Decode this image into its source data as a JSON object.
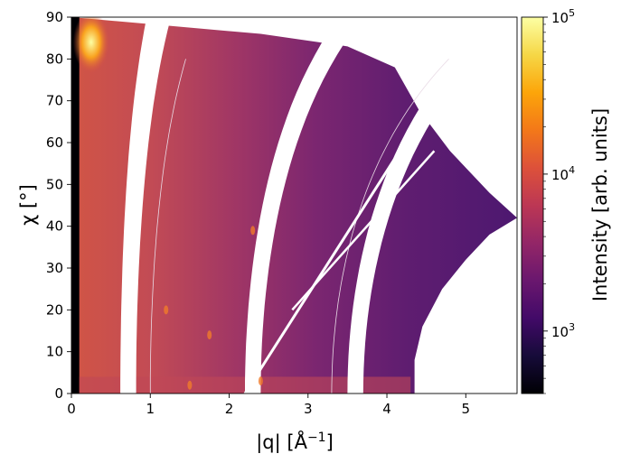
{
  "chart_data": {
    "type": "heatmap",
    "title": "",
    "x_axis": {
      "label_main": "|q| [Å",
      "label_sup": "−1",
      "label_end": "]",
      "range": [
        0,
        5.65
      ],
      "ticks": [
        0,
        1,
        2,
        3,
        4,
        5
      ],
      "tick_labels": [
        "0",
        "1",
        "2",
        "3",
        "4",
        "5"
      ]
    },
    "y_axis": {
      "label_main": "χ [°]",
      "range": [
        0,
        90
      ],
      "ticks": [
        0,
        10,
        20,
        30,
        40,
        50,
        60,
        70,
        80,
        90
      ],
      "tick_labels": [
        "0",
        "10",
        "20",
        "30",
        "40",
        "50",
        "60",
        "70",
        "80",
        "90"
      ]
    },
    "colorbar": {
      "label": "Intensity [arb. units]",
      "scale": "log",
      "range": [
        400,
        100000
      ],
      "colormap": "inferno",
      "ticks": [
        1000,
        10000,
        100000
      ],
      "tick_bases": [
        "10",
        "10",
        "10"
      ],
      "tick_exps": [
        "3",
        "4",
        "5"
      ]
    },
    "detector_gaps_q_at_chi0": [
      0.62,
      2.2,
      3.5
    ],
    "detector_gap_widths_q": [
      0.2,
      0.2,
      0.2
    ],
    "horizontal_gap_q_at_chi0": 4.35,
    "q_max_at_chi0": 4.35,
    "grid": false,
    "colors": {
      "background_low": "#5a1f71",
      "mid": "#b4435f",
      "high": "#fcd060",
      "gap": "#ffffff"
    }
  }
}
